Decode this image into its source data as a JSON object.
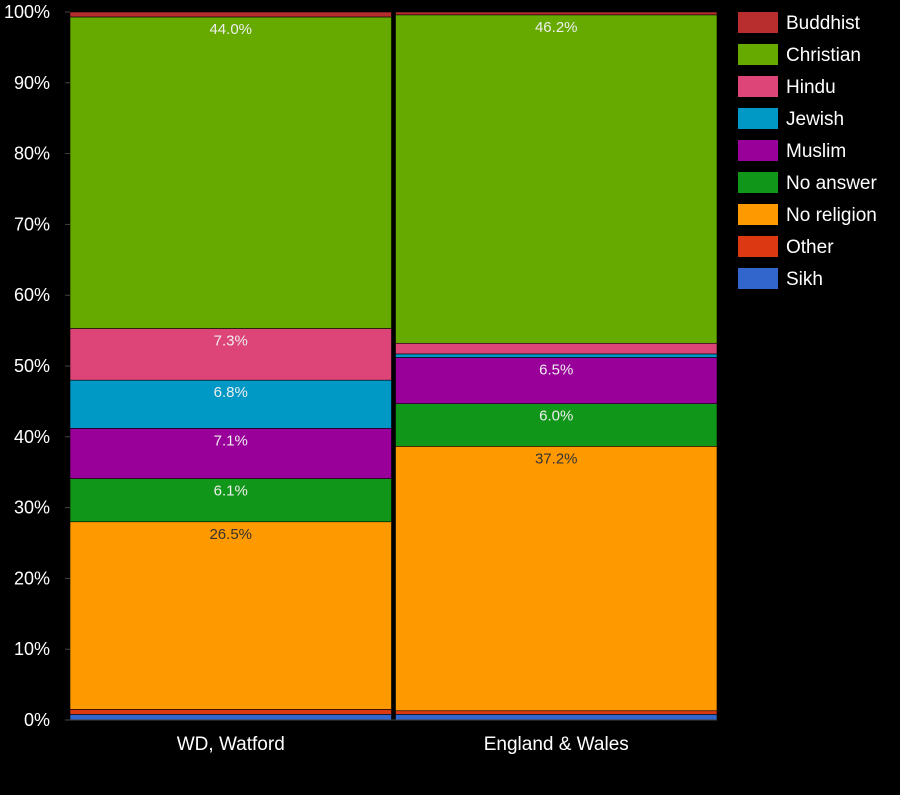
{
  "chart_data": {
    "type": "bar",
    "stacked": true,
    "normalized": true,
    "title": "",
    "xlabel": "",
    "ylabel": "",
    "ylim": [
      0,
      100
    ],
    "y_ticks": [
      "0%",
      "10%",
      "20%",
      "30%",
      "40%",
      "50%",
      "60%",
      "70%",
      "80%",
      "90%",
      "100%"
    ],
    "grid": false,
    "legend_position": "right",
    "categories": [
      "WD, Watford",
      "England & Wales"
    ],
    "series": [
      {
        "name": "Sikh",
        "color": "#3366cc",
        "values": [
          0.8,
          0.8
        ],
        "labels": [
          "",
          ""
        ]
      },
      {
        "name": "Other",
        "color": "#dc3912",
        "values": [
          0.7,
          0.5
        ],
        "labels": [
          "",
          ""
        ]
      },
      {
        "name": "No religion",
        "color": "#ff9900",
        "values": [
          26.5,
          37.2
        ],
        "labels": [
          "26.5%",
          "37.2%"
        ]
      },
      {
        "name": "No answer",
        "color": "#109618",
        "values": [
          6.1,
          6.0
        ],
        "labels": [
          "6.1%",
          "6.0%"
        ]
      },
      {
        "name": "Muslim",
        "color": "#990099",
        "values": [
          7.1,
          6.5
        ],
        "labels": [
          "7.1%",
          "6.5%"
        ]
      },
      {
        "name": "Jewish",
        "color": "#0099c6",
        "values": [
          6.8,
          0.5
        ],
        "labels": [
          "6.8%",
          ""
        ]
      },
      {
        "name": "Hindu",
        "color": "#dd4477",
        "values": [
          7.3,
          1.5
        ],
        "labels": [
          "7.3%",
          ""
        ]
      },
      {
        "name": "Christian",
        "color": "#66aa00",
        "values": [
          44.0,
          46.2
        ],
        "labels": [
          "44.0%",
          "46.2%"
        ]
      },
      {
        "name": "Buddhist",
        "color": "#b82e2e",
        "values": [
          0.7,
          0.4
        ],
        "labels": [
          "",
          ""
        ]
      }
    ],
    "legend_order": [
      "Buddhist",
      "Christian",
      "Hindu",
      "Jewish",
      "Muslim",
      "No answer",
      "No religion",
      "Other",
      "Sikh"
    ]
  }
}
